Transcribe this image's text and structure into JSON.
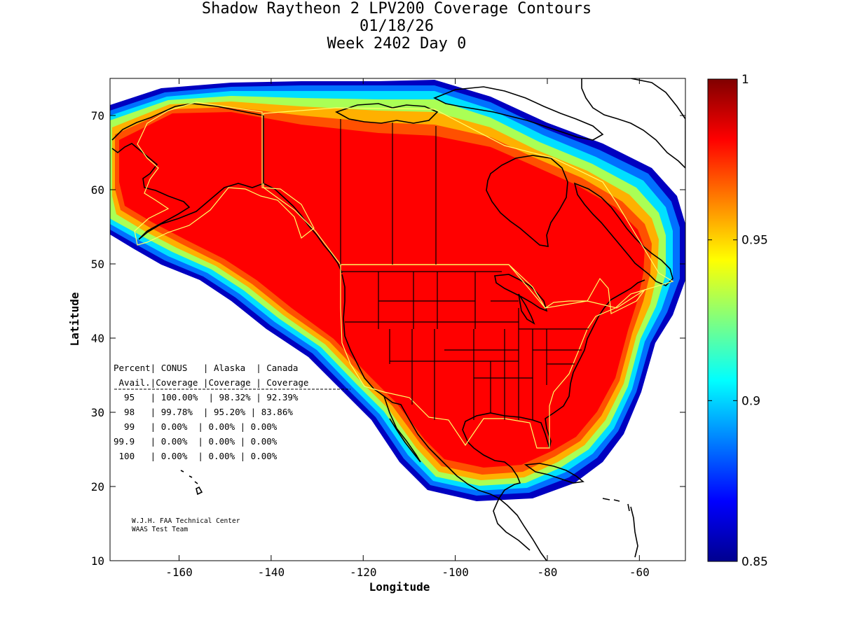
{
  "title": {
    "line1": "Shadow Raytheon 2 LPV200 Coverage Contours",
    "line2": "01/18/26",
    "line3": "Week 2402 Day 0"
  },
  "axes": {
    "xlabel": "Longitude",
    "ylabel": "Latitude",
    "xlim": [
      -175,
      -50
    ],
    "ylim": [
      10,
      75
    ],
    "xticks": [
      -160,
      -140,
      -120,
      -100,
      -80,
      -60
    ],
    "yticks": [
      10,
      20,
      30,
      40,
      50,
      60,
      70
    ]
  },
  "colorbar": {
    "range": [
      0.85,
      1
    ],
    "ticks": [
      "1",
      "0.95",
      "0.9",
      "0.85"
    ],
    "colormap": "jet"
  },
  "table": {
    "rows": [
      "Percent| CONUS   | Alaska  | Canada",
      " Avail.|Coverage |Coverage | Coverage",
      "  95   | 100.00%  | 98.32% | 92.39%",
      "  98   | 99.78%  | 95.20% | 83.86%",
      "  99   | 0.00%  | 0.00% | 0.00%",
      "99.9   | 0.00%  | 0.00% | 0.00%",
      " 100   | 0.00%  | 0.00% | 0.00%"
    ]
  },
  "credit": {
    "line1": "W.J.H. FAA Technical Center",
    "line2": "WAAS Test Team"
  },
  "colors": {
    "coverage_core": "#ff0000",
    "service_boundary": "#ffff66",
    "coastline": "#000000"
  }
}
